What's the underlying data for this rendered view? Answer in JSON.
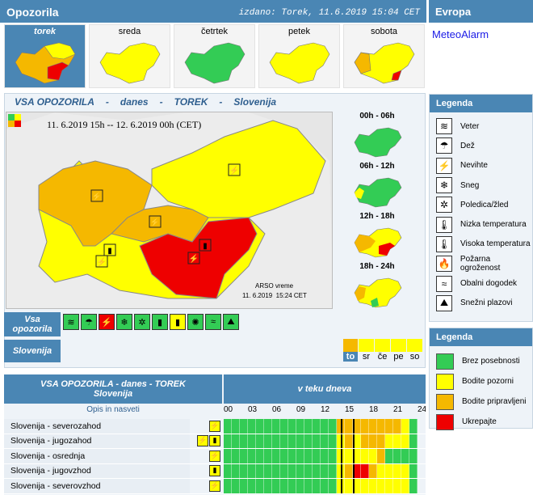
{
  "header": {
    "title": "Opozorila",
    "issued": "izdano: Torek, 11.6.2019 15:04 CET",
    "europe_title": "Evropa",
    "meteoalarm_link": "MeteoAlarm"
  },
  "days": [
    {
      "label": "torek",
      "selected": true,
      "map": "mixed"
    },
    {
      "label": "sreda",
      "selected": false,
      "map": "yellow"
    },
    {
      "label": "četrtek",
      "selected": false,
      "map": "green"
    },
    {
      "label": "petek",
      "selected": false,
      "map": "yellow"
    },
    {
      "label": "sobota",
      "selected": false,
      "map": "yellowmix"
    }
  ],
  "main": {
    "heading": {
      "p1": "VSA OPOZORILA",
      "d1": "-",
      "p2": "danes",
      "d2": "-",
      "p3": "TOREK",
      "d3": "-",
      "p4": "Slovenija"
    },
    "map_caption": "11. 6.2019 15h -- 12. 6.2019 00h (CET)",
    "arso_label": "ARSO vreme",
    "arso_time": "11. 6.2019  15:24 CET",
    "periods": [
      "00h - 06h",
      "06h - 12h",
      "12h - 18h",
      "18h - 24h"
    ]
  },
  "toolbar": {
    "vsa_opozorila": "Vsa opozorila",
    "slovenija": "Slovenija",
    "day_tabs": [
      "to",
      "sr",
      "če",
      "pe",
      "so"
    ]
  },
  "legend_types": {
    "title": "Legenda",
    "items": [
      {
        "icon": "wind-icon",
        "glyph": "≋",
        "label": "Veter"
      },
      {
        "icon": "rain-icon",
        "glyph": "☂",
        "label": "Dež"
      },
      {
        "icon": "thunderstorm-icon",
        "glyph": "⚡",
        "label": "Nevihte"
      },
      {
        "icon": "snow-icon",
        "glyph": "❄",
        "label": "Sneg"
      },
      {
        "icon": "ice-icon",
        "glyph": "✲",
        "label": "Poledica/žled"
      },
      {
        "icon": "low-temperature-icon",
        "glyph": "🌡",
        "label": "Nizka temperatura"
      },
      {
        "icon": "high-temperature-icon",
        "glyph": "🌡",
        "label": "Visoka temperatura"
      },
      {
        "icon": "fire-danger-icon",
        "glyph": "🔥",
        "label": "Požarna ogroženost"
      },
      {
        "icon": "coastal-event-icon",
        "glyph": "≈",
        "label": "Obalni dogodek"
      },
      {
        "icon": "avalanche-icon",
        "glyph": "⛰",
        "label": "Snežni plazovi"
      }
    ]
  },
  "legend_levels": {
    "title": "Legenda",
    "items": [
      {
        "color": "#33cc55",
        "label": "Brez posebnosti"
      },
      {
        "color": "#ffff00",
        "label": "Bodite pozorni"
      },
      {
        "color": "#f5b800",
        "label": "Bodite pripravljeni"
      },
      {
        "color": "#ee0000",
        "label": "Ukrepajte"
      }
    ]
  },
  "table": {
    "title_line1": "VSA OPOZORILA - danes - TOREK",
    "title_line2": "Slovenija",
    "right_title": "v teku dneva",
    "col_header": "Opis in nasveti",
    "hours": [
      "00",
      "03",
      "06",
      "09",
      "12",
      "15",
      "18",
      "21",
      "24"
    ],
    "rows": [
      {
        "name": "Slovenija - severozahod",
        "icons": [
          "thunderstorm-icon"
        ]
      },
      {
        "name": "Slovenija - jugozahod",
        "icons": [
          "thunderstorm-icon",
          "high-temperature-icon"
        ]
      },
      {
        "name": "Slovenija - osrednja",
        "icons": [
          "thunderstorm-icon"
        ]
      },
      {
        "name": "Slovenija - jugovzhod",
        "icons": [
          "high-temperature-icon"
        ]
      },
      {
        "name": "Slovenija - severovzhod",
        "icons": [
          "thunderstorm-icon"
        ]
      }
    ]
  },
  "colors": {
    "accent": "#4a86b4",
    "green": "#33cc55",
    "yellow": "#ffff00",
    "orange": "#f5b800",
    "red": "#ee0000"
  }
}
